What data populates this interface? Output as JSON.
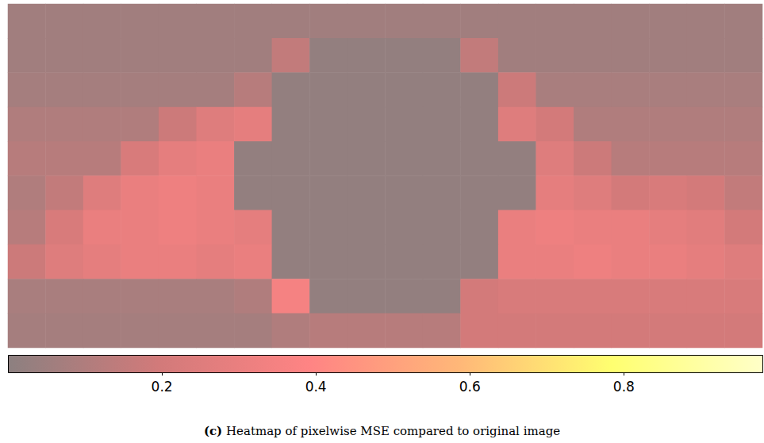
{
  "chart_data": {
    "type": "heatmap",
    "panel": "(c)",
    "caption": "Heatmap of pixelwise MSE compared to original image",
    "tick_labels": false,
    "cells": [
      [
        0.06,
        0.06,
        0.06,
        0.06,
        0.06,
        0.06,
        0.06,
        0.06,
        0.06,
        0.06,
        0.06,
        0.06,
        0.06,
        0.06,
        0.06,
        0.06,
        0.06,
        0.06,
        0.06,
        0.06
      ],
      [
        0.06,
        0.06,
        0.06,
        0.06,
        0.06,
        0.06,
        0.06,
        0.15,
        0.02,
        0.02,
        0.02,
        0.02,
        0.15,
        0.06,
        0.06,
        0.06,
        0.06,
        0.06,
        0.06,
        0.06
      ],
      [
        0.07,
        0.07,
        0.07,
        0.07,
        0.07,
        0.07,
        0.12,
        0.02,
        0.02,
        0.02,
        0.02,
        0.02,
        0.02,
        0.18,
        0.08,
        0.08,
        0.08,
        0.08,
        0.08,
        0.08
      ],
      [
        0.1,
        0.1,
        0.1,
        0.1,
        0.18,
        0.25,
        0.28,
        0.02,
        0.02,
        0.02,
        0.02,
        0.02,
        0.02,
        0.25,
        0.2,
        0.1,
        0.1,
        0.1,
        0.1,
        0.1
      ],
      [
        0.12,
        0.12,
        0.12,
        0.22,
        0.28,
        0.3,
        0.02,
        0.02,
        0.02,
        0.02,
        0.02,
        0.02,
        0.02,
        0.02,
        0.25,
        0.18,
        0.12,
        0.12,
        0.12,
        0.12
      ],
      [
        0.1,
        0.15,
        0.25,
        0.3,
        0.32,
        0.3,
        0.02,
        0.02,
        0.02,
        0.02,
        0.02,
        0.02,
        0.02,
        0.02,
        0.28,
        0.25,
        0.2,
        0.22,
        0.2,
        0.15
      ],
      [
        0.12,
        0.22,
        0.3,
        0.3,
        0.32,
        0.3,
        0.28,
        0.02,
        0.02,
        0.02,
        0.02,
        0.02,
        0.02,
        0.3,
        0.32,
        0.3,
        0.3,
        0.28,
        0.26,
        0.2
      ],
      [
        0.18,
        0.25,
        0.28,
        0.3,
        0.3,
        0.28,
        0.3,
        0.02,
        0.02,
        0.02,
        0.02,
        0.02,
        0.02,
        0.3,
        0.3,
        0.32,
        0.3,
        0.3,
        0.28,
        0.25
      ],
      [
        0.08,
        0.08,
        0.08,
        0.08,
        0.08,
        0.08,
        0.1,
        0.35,
        0.02,
        0.02,
        0.02,
        0.02,
        0.2,
        0.22,
        0.22,
        0.22,
        0.22,
        0.22,
        0.22,
        0.22
      ],
      [
        0.07,
        0.07,
        0.07,
        0.07,
        0.07,
        0.07,
        0.07,
        0.1,
        0.12,
        0.12,
        0.12,
        0.12,
        0.2,
        0.2,
        0.2,
        0.2,
        0.2,
        0.2,
        0.2,
        0.2
      ]
    ],
    "color_range": [
      0,
      0.98
    ],
    "color_ticks": [
      0.2,
      0.4,
      0.6,
      0.8
    ]
  }
}
